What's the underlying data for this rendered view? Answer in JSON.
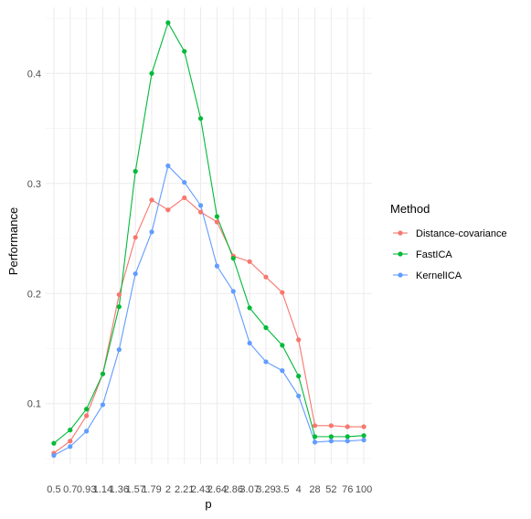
{
  "chart_data": {
    "type": "line",
    "xlabel": "p",
    "ylabel": "Performance",
    "x_tick_labels": [
      "0.5",
      "0.7",
      "0.93",
      "1.14",
      "1.36",
      "1.57",
      "1.79",
      "2",
      "2.21",
      "2.43",
      "2.64",
      "2.86",
      "3.07",
      "3.29",
      "3.5",
      "4",
      "28",
      "52",
      "76",
      "100"
    ],
    "x": [
      "0.5",
      "0.7",
      "0.93",
      "1.14",
      "1.36",
      "1.57",
      "1.79",
      "2",
      "2.21",
      "2.43",
      "2.64",
      "2.86",
      "3.07",
      "3.29",
      "3.5",
      "4",
      "28",
      "52",
      "76",
      "100"
    ],
    "ylim": [
      0.045,
      0.46
    ],
    "y_ticks": [
      0.1,
      0.2,
      0.3,
      0.4
    ],
    "y_tick_labels": [
      "0.1",
      "0.2",
      "0.3",
      "0.4"
    ],
    "grid": true,
    "legend": {
      "title": "Method",
      "position": "right",
      "entries": [
        "Distance-covariance",
        "FastICA",
        "KernelICA"
      ]
    },
    "series": [
      {
        "name": "Distance-covariance",
        "color": "#F8766D",
        "values": [
          0.055,
          0.066,
          0.089,
          0.127,
          0.199,
          0.251,
          0.285,
          0.276,
          0.287,
          0.274,
          0.265,
          0.234,
          0.229,
          0.215,
          0.201,
          0.158,
          0.08,
          0.08,
          0.079,
          0.079
        ]
      },
      {
        "name": "FastICA",
        "color": "#00BA38",
        "values": [
          0.064,
          0.076,
          0.095,
          0.127,
          0.188,
          0.311,
          0.4,
          0.446,
          0.42,
          0.359,
          0.27,
          0.232,
          0.187,
          0.169,
          0.153,
          0.125,
          0.07,
          0.07,
          0.07,
          0.071
        ]
      },
      {
        "name": "KernelICA",
        "color": "#619CFF",
        "values": [
          0.053,
          0.061,
          0.075,
          0.099,
          0.149,
          0.218,
          0.256,
          0.316,
          0.301,
          0.28,
          0.225,
          0.202,
          0.155,
          0.138,
          0.13,
          0.107,
          0.065,
          0.066,
          0.066,
          0.067
        ]
      }
    ]
  }
}
